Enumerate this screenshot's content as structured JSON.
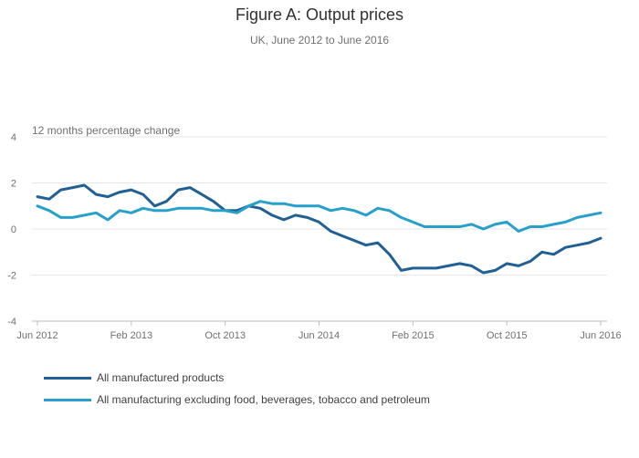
{
  "chart_data": {
    "type": "line",
    "title": "Figure A: Output prices",
    "subtitle": "UK, June 2012 to June 2016",
    "ylabel": "12 months percentage change",
    "ylim": [
      -4,
      4
    ],
    "yticks": [
      "4",
      "2",
      "0",
      "-2",
      "-4"
    ],
    "xtick_labels": [
      "Jun 2012",
      "Feb 2013",
      "Oct 2013",
      "Jun 2014",
      "Feb 2015",
      "Oct 2015",
      "Jun 2016"
    ],
    "xtick_index": [
      0,
      8,
      16,
      24,
      32,
      40,
      48
    ],
    "legend_position": "bottom-left",
    "grid": true,
    "series": [
      {
        "name": "All manufactured products",
        "color": "#206095",
        "values": [
          1.4,
          1.3,
          1.7,
          1.8,
          1.9,
          1.5,
          1.4,
          1.6,
          1.7,
          1.5,
          1.0,
          1.2,
          1.7,
          1.8,
          1.5,
          1.2,
          0.8,
          0.8,
          1.0,
          0.9,
          0.6,
          0.4,
          0.6,
          0.5,
          0.3,
          -0.1,
          -0.3,
          -0.5,
          -0.7,
          -0.6,
          -1.1,
          -1.8,
          -1.7,
          -1.7,
          -1.7,
          -1.6,
          -1.5,
          -1.6,
          -1.9,
          -1.8,
          -1.5,
          -1.6,
          -1.4,
          -1.0,
          -1.1,
          -0.8,
          -0.7,
          -0.6,
          -0.4
        ]
      },
      {
        "name": "All manufacturing excluding food, beverages, tobacco and petroleum",
        "color": "#27a0cc",
        "values": [
          1.0,
          0.8,
          0.5,
          0.5,
          0.6,
          0.7,
          0.4,
          0.8,
          0.7,
          0.9,
          0.8,
          0.8,
          0.9,
          0.9,
          0.9,
          0.8,
          0.8,
          0.7,
          1.0,
          1.2,
          1.1,
          1.1,
          1.0,
          1.0,
          1.0,
          0.8,
          0.9,
          0.8,
          0.6,
          0.9,
          0.8,
          0.5,
          0.3,
          0.1,
          0.1,
          0.1,
          0.1,
          0.2,
          0.0,
          0.2,
          0.3,
          -0.1,
          0.1,
          0.1,
          0.2,
          0.3,
          0.5,
          0.6,
          0.7
        ]
      }
    ]
  }
}
